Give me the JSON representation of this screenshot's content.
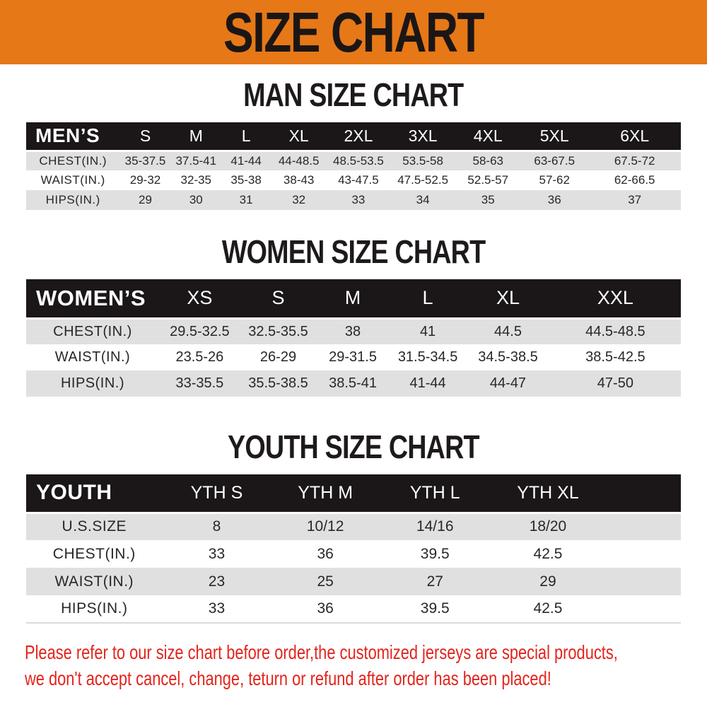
{
  "banner": {
    "title": "SIZE CHART",
    "background_color": "#E67817",
    "text_color": "#1B1616"
  },
  "sections": [
    {
      "heading": "MAN SIZE CHART",
      "table": {
        "group_label": "MEN’S",
        "sizes": [
          "S",
          "M",
          "L",
          "XL",
          "2XL",
          "3XL",
          "4XL",
          "5XL",
          "6XL"
        ],
        "rows": [
          {
            "label": "CHEST(IN.)",
            "values": [
              "35-37.5",
              "37.5-41",
              "41-44",
              "44-48.5",
              "48.5-53.5",
              "53.5-58",
              "58-63",
              "63-67.5",
              "67.5-72"
            ]
          },
          {
            "label": "WAIST(IN.)",
            "values": [
              "29-32",
              "32-35",
              "35-38",
              "38-43",
              "43-47.5",
              "47.5-52.5",
              "52.5-57",
              "57-62",
              "62-66.5"
            ]
          },
          {
            "label": "HIPS(IN.)",
            "values": [
              "29",
              "30",
              "31",
              "32",
              "33",
              "34",
              "35",
              "36",
              "37"
            ]
          }
        ]
      }
    },
    {
      "heading": "WOMEN SIZE CHART",
      "table": {
        "group_label": "WOMEN’S",
        "sizes": [
          "XS",
          "S",
          "M",
          "L",
          "XL",
          "XXL"
        ],
        "rows": [
          {
            "label": "CHEST(IN.)",
            "values": [
              "29.5-32.5",
              "32.5-35.5",
              "38",
              "41",
              "44.5",
              "44.5-48.5"
            ]
          },
          {
            "label": "WAIST(IN.)",
            "values": [
              "23.5-26",
              "26-29",
              "29-31.5",
              "31.5-34.5",
              "34.5-38.5",
              "38.5-42.5"
            ]
          },
          {
            "label": "HIPS(IN.)",
            "values": [
              "33-35.5",
              "35.5-38.5",
              "38.5-41",
              "41-44",
              "44-47",
              "47-50"
            ]
          }
        ]
      }
    },
    {
      "heading": "YOUTH SIZE CHART",
      "table": {
        "group_label": "YOUTH",
        "sizes": [
          "YTH S",
          "YTH M",
          "YTH L",
          "YTH XL"
        ],
        "rows": [
          {
            "label": "U.S.SIZE",
            "values": [
              "8",
              "10/12",
              "14/16",
              "18/20"
            ]
          },
          {
            "label": "CHEST(IN.)",
            "values": [
              "33",
              "36",
              "39.5",
              "42.5"
            ]
          },
          {
            "label": "WAIST(IN.)",
            "values": [
              "23",
              "25",
              "27",
              "29"
            ]
          },
          {
            "label": "HIPS(IN.)",
            "values": [
              "33",
              "36",
              "39.5",
              "42.5"
            ]
          }
        ]
      }
    }
  ],
  "footer": {
    "line1": "Please refer to our size chart before order,the customized jerseys are special products,",
    "line2": "we don't accept cancel, change, teturn or refund after order has been placed!",
    "text_color": "#E2241C"
  },
  "colors": {
    "banner_orange": "#E67817",
    "header_band_black": "#1B1617",
    "row_alt_gray": "#E0E0E0",
    "footer_red": "#E2241C"
  }
}
